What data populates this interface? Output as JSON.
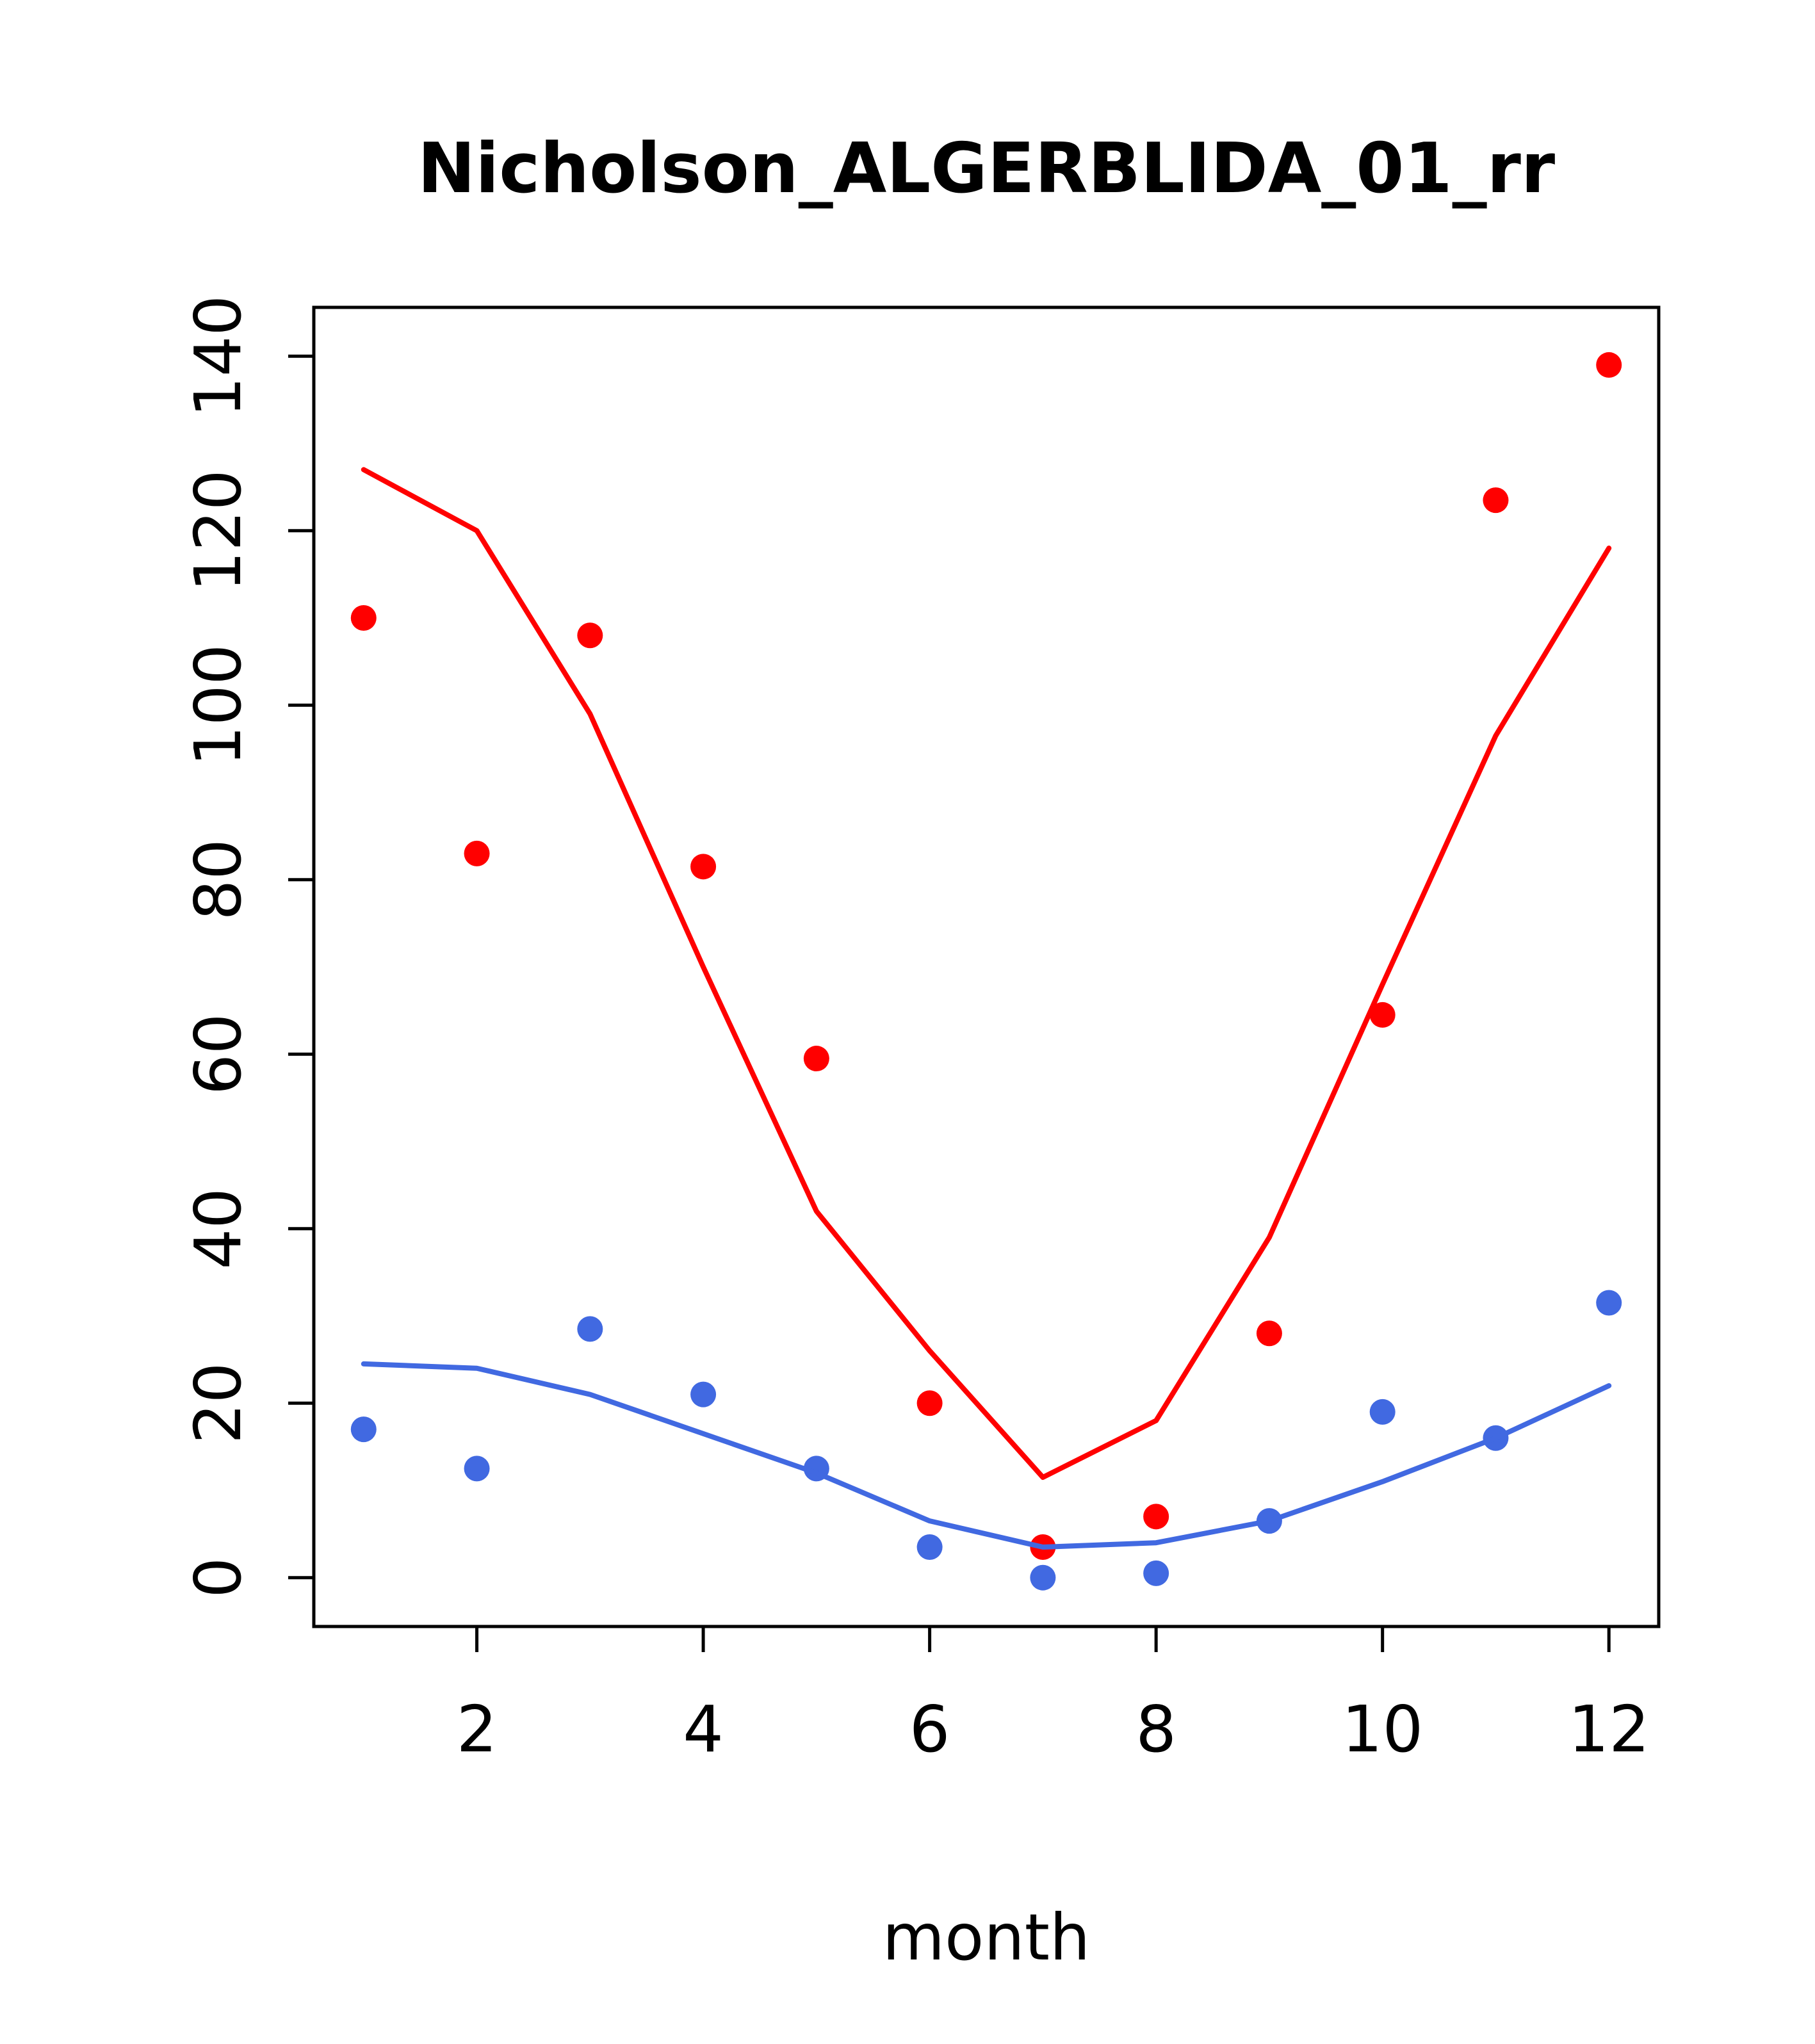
{
  "chart_data": {
    "type": "line",
    "title": "Nicholson_ALGERBLIDA_01_rr",
    "xlabel": "month",
    "ylabel": "",
    "xlim": [
      0.56,
      12.44
    ],
    "ylim": [
      -5.6,
      145.6
    ],
    "x_ticks": [
      2,
      4,
      6,
      8,
      10,
      12
    ],
    "y_ticks": [
      0,
      20,
      40,
      60,
      80,
      100,
      120,
      140
    ],
    "grid": false,
    "legend": "none",
    "x": [
      1,
      2,
      3,
      4,
      5,
      6,
      7,
      8,
      9,
      10,
      11,
      12
    ],
    "series": [
      {
        "name": "observed-red-points",
        "kind": "points",
        "color": "#FF0000",
        "values": [
          110,
          83,
          108,
          81.5,
          59.5,
          20,
          3.5,
          7,
          28,
          64.5,
          123.5,
          139
        ]
      },
      {
        "name": "model-red-line",
        "kind": "line",
        "color": "#FF0000",
        "values": [
          127,
          120,
          99,
          70,
          42,
          26,
          11.5,
          18,
          39,
          68,
          96.5,
          118
        ]
      },
      {
        "name": "observed-blue-points",
        "kind": "points",
        "color": "#4169E1",
        "values": [
          17,
          12.5,
          28.5,
          21,
          12.5,
          3.5,
          0,
          0.5,
          6.5,
          19,
          16,
          31.5
        ]
      },
      {
        "name": "model-blue-line",
        "kind": "line",
        "color": "#4169E1",
        "values": [
          24.5,
          24,
          21,
          16.5,
          12,
          6.5,
          3.5,
          4,
          6.5,
          11,
          16,
          22
        ]
      }
    ],
    "colors": {
      "axis": "#000000",
      "background": "#FFFFFF",
      "red_series": "#FF0000",
      "blue_series": "#4169E1"
    }
  }
}
